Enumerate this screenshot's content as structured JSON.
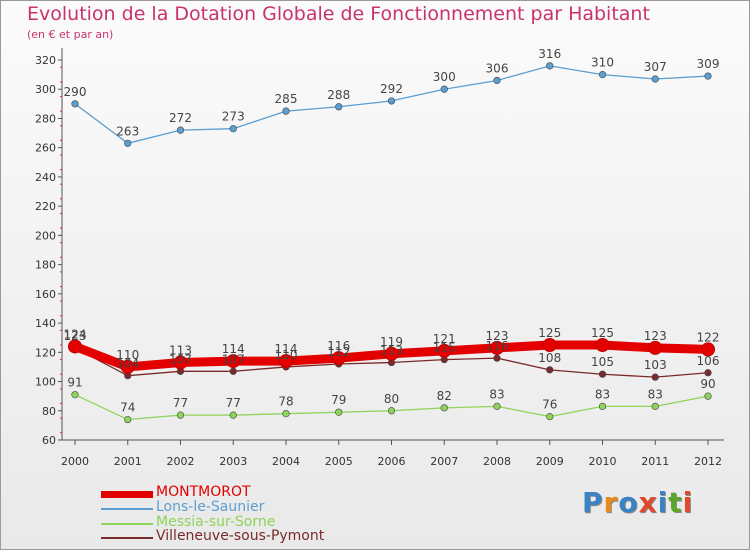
{
  "chart_data": {
    "type": "line",
    "title": "Evolution de la Dotation Globale de Fonctionnement par Habitant",
    "subtitle": "(en € et par an)",
    "xlabel": "",
    "ylabel": "",
    "ylim": [
      60,
      320
    ],
    "yticks": [
      60,
      80,
      100,
      120,
      140,
      160,
      180,
      200,
      220,
      240,
      260,
      280,
      300,
      320
    ],
    "grid": false,
    "legend_position": "bottom-left",
    "x": [
      "2000",
      "2001",
      "2002",
      "2003",
      "2004",
      "2005",
      "2006",
      "2007",
      "2008",
      "2009",
      "2010",
      "2011",
      "2012"
    ],
    "series": [
      {
        "name": "Lons-le-Saunier",
        "color": "#5b9fd0",
        "values": [
          290,
          263,
          272,
          273,
          285,
          288,
          292,
          300,
          306,
          316,
          310,
          307,
          309
        ]
      },
      {
        "name": "Messia-sur-Sorne",
        "color": "#8ed35a",
        "values": [
          91,
          74,
          77,
          77,
          78,
          79,
          80,
          82,
          83,
          76,
          83,
          83,
          90
        ]
      },
      {
        "name": "Villeneuve-sous-Pymont",
        "color": "#7a2a2a",
        "values": [
          123,
          104,
          107,
          107,
          110,
          112,
          113,
          115,
          116,
          108,
          105,
          103,
          106
        ]
      },
      {
        "name": "MONTMOROT",
        "color": "#e40000",
        "values": [
          124,
          110,
          113,
          114,
          114,
          116,
          119,
          121,
          123,
          125,
          125,
          123,
          122
        ]
      }
    ]
  },
  "legend": [
    {
      "name": "MONTMOROT",
      "color": "#e40000",
      "thick": true
    },
    {
      "name": "Lons-le-Saunier",
      "color": "#5b9fd0",
      "thick": false
    },
    {
      "name": "Messia-sur-Sorne",
      "color": "#8ed35a",
      "thick": false
    },
    {
      "name": "Villeneuve-sous-Pymont",
      "color": "#7a2a2a",
      "thick": false
    }
  ],
  "logo": {
    "text": "Proxiti",
    "colors": [
      "#3a82c4",
      "#e68a1c",
      "#3a82c4",
      "#e04a2c",
      "#3a82c4",
      "#5aa62a",
      "#e04a2c"
    ]
  }
}
